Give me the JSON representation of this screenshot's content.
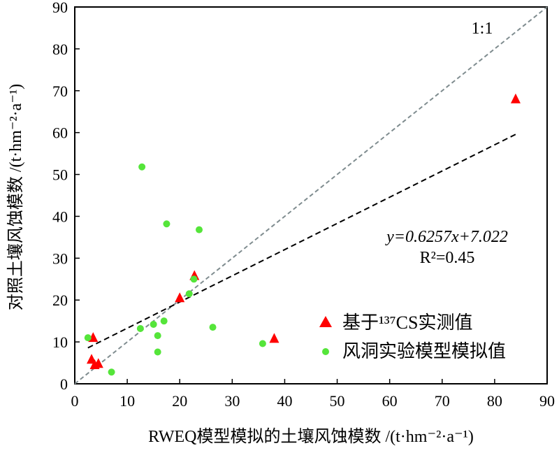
{
  "chart_data": {
    "type": "scatter",
    "xlabel": "RWEQ模型模拟的土壤风蚀模数 /(t·hm⁻²·a⁻¹)",
    "ylabel": "对照土壤风蚀模数 /(t·hm⁻²·a⁻¹)",
    "xlim": [
      0,
      90
    ],
    "ylim": [
      0,
      90
    ],
    "xticks": [
      "0",
      "10",
      "20",
      "30",
      "40",
      "50",
      "60",
      "70",
      "80",
      "90"
    ],
    "yticks": [
      "0",
      "10",
      "20",
      "30",
      "40",
      "50",
      "60",
      "70",
      "80",
      "90"
    ],
    "identity_label": "1:1",
    "equation": "y=0.6257x+7.022",
    "r2": "R²=0.45",
    "fit": {
      "slope": 0.6257,
      "intercept": 7.022,
      "x_range": [
        2.5,
        84
      ]
    },
    "legend_position": "bottom-right",
    "series": [
      {
        "name": "基于¹³⁷CS实测值",
        "marker": "triangle",
        "color": "#ff0000",
        "points": [
          [
            3.5,
            11
          ],
          [
            3.2,
            5.8
          ],
          [
            3.8,
            4.5
          ],
          [
            4.5,
            4.8
          ],
          [
            20,
            20.5
          ],
          [
            22.8,
            25.8
          ],
          [
            38,
            10.8
          ],
          [
            84,
            68
          ]
        ]
      },
      {
        "name": "风洞实验模型模拟值",
        "marker": "circle",
        "color": "#55e53a",
        "points": [
          [
            2.5,
            11
          ],
          [
            7,
            2.8
          ],
          [
            12.5,
            13.2
          ],
          [
            12.8,
            51.8
          ],
          [
            15,
            14.2
          ],
          [
            15.8,
            11.5
          ],
          [
            15.8,
            7.6
          ],
          [
            17,
            15
          ],
          [
            17.5,
            38.2
          ],
          [
            21.8,
            21.5
          ],
          [
            22.7,
            25
          ],
          [
            23.7,
            36.8
          ],
          [
            26.3,
            13.5
          ],
          [
            35.8,
            9.6
          ]
        ]
      }
    ]
  }
}
